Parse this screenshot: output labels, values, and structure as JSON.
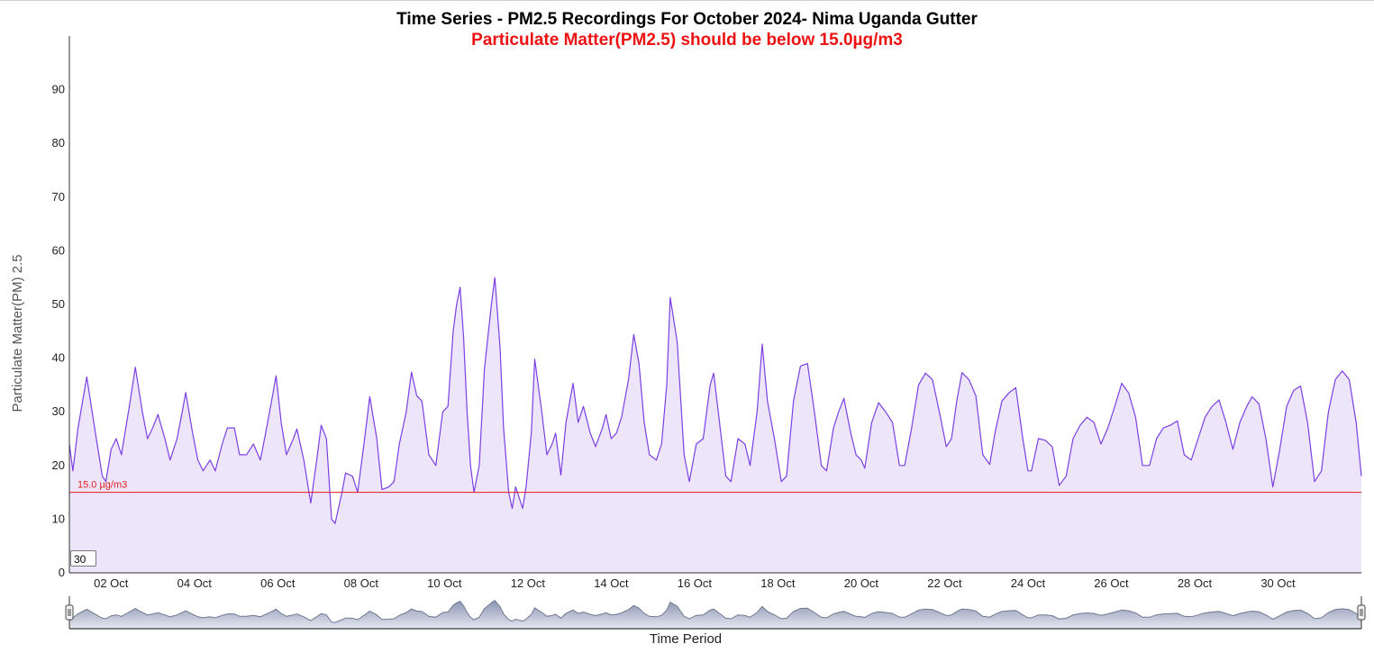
{
  "chart_data": {
    "type": "area",
    "title": "Time Series - PM2.5 Recordings For October 2024- Nima Uganda Gutter",
    "subtitle": "Particulate Matter(PM2.5) should be below 15.0µg/m3",
    "ylabel": "Particulate Matter(PM) 2.5",
    "xlabel": "Time Period",
    "ylim": [
      0,
      100
    ],
    "xlim": [
      "2024-10-01",
      "2024-11-01"
    ],
    "y_ticks": [
      "0",
      "10",
      "20",
      "30",
      "40",
      "50",
      "60",
      "70",
      "80",
      "90"
    ],
    "x_ticks": [
      "02 Oct",
      "04 Oct",
      "06 Oct",
      "08 Oct",
      "10 Oct",
      "12 Oct",
      "14 Oct",
      "16 Oct",
      "18 Oct",
      "20 Oct",
      "22 Oct",
      "24 Oct",
      "26 Oct",
      "28 Oct",
      "30 Oct"
    ],
    "threshold": {
      "value": 15.0,
      "label": "15.0 µg/m3",
      "color": "#e41a1c"
    },
    "rolling_window": "30",
    "line_color": "#7b3fe4",
    "fill_color": "#ede6fb",
    "series": [
      {
        "points": [
          [
            "2024-10-01 00:00",
            24
          ],
          [
            "2024-10-01 02:00",
            19
          ],
          [
            "2024-10-01 05:00",
            27
          ],
          [
            "2024-10-01 10:00",
            36.5
          ],
          [
            "2024-10-01 15:00",
            26
          ],
          [
            "2024-10-01 19:00",
            18
          ],
          [
            "2024-10-01 21:00",
            17
          ],
          [
            "2024-10-02 00:00",
            23
          ],
          [
            "2024-10-02 03:00",
            25
          ],
          [
            "2024-10-02 06:00",
            22
          ],
          [
            "2024-10-02 11:00",
            32
          ],
          [
            "2024-10-02 14:00",
            38.3
          ],
          [
            "2024-10-02 18:00",
            30
          ],
          [
            "2024-10-02 21:00",
            25
          ],
          [
            "2024-10-03 00:00",
            27
          ],
          [
            "2024-10-03 03:00",
            29.5
          ],
          [
            "2024-10-03 07:00",
            25
          ],
          [
            "2024-10-03 10:00",
            21
          ],
          [
            "2024-10-03 14:00",
            25
          ],
          [
            "2024-10-03 17:00",
            30
          ],
          [
            "2024-10-03 19:00",
            33.6
          ],
          [
            "2024-10-03 23:00",
            26
          ],
          [
            "2024-10-04 02:00",
            21
          ],
          [
            "2024-10-04 05:00",
            19
          ],
          [
            "2024-10-04 09:00",
            21
          ],
          [
            "2024-10-04 12:00",
            19
          ],
          [
            "2024-10-04 16:00",
            24
          ],
          [
            "2024-10-04 19:00",
            27
          ],
          [
            "2024-10-04 23:00",
            27
          ],
          [
            "2024-10-05 02:00",
            22
          ],
          [
            "2024-10-05 06:00",
            22
          ],
          [
            "2024-10-05 10:00",
            24
          ],
          [
            "2024-10-05 14:00",
            21
          ],
          [
            "2024-10-05 17:00",
            26
          ],
          [
            "2024-10-05 21:00",
            33
          ],
          [
            "2024-10-05 23:00",
            36.7
          ],
          [
            "2024-10-06 02:00",
            28
          ],
          [
            "2024-10-06 05:00",
            22
          ],
          [
            "2024-10-06 09:00",
            25
          ],
          [
            "2024-10-06 11:00",
            26.8
          ],
          [
            "2024-10-06 15:00",
            21
          ],
          [
            "2024-10-06 19:00",
            13
          ],
          [
            "2024-10-06 22:00",
            20
          ],
          [
            "2024-10-07 01:00",
            27.5
          ],
          [
            "2024-10-07 04:00",
            25
          ],
          [
            "2024-10-07 07:00",
            10
          ],
          [
            "2024-10-07 09:00",
            9.2
          ],
          [
            "2024-10-07 13:00",
            15
          ],
          [
            "2024-10-07 15:00",
            18.6
          ],
          [
            "2024-10-07 19:00",
            18
          ],
          [
            "2024-10-07 22:00",
            15
          ],
          [
            "2024-10-08 02:00",
            25
          ],
          [
            "2024-10-08 05:00",
            32.8
          ],
          [
            "2024-10-08 09:00",
            25
          ],
          [
            "2024-10-08 12:00",
            15.5
          ],
          [
            "2024-10-08 16:00",
            16
          ],
          [
            "2024-10-08 19:00",
            17
          ],
          [
            "2024-10-08 22:00",
            24
          ],
          [
            "2024-10-09 02:00",
            30
          ],
          [
            "2024-10-09 05:00",
            37.4
          ],
          [
            "2024-10-09 08:00",
            33
          ],
          [
            "2024-10-09 11:00",
            32
          ],
          [
            "2024-10-09 15:00",
            22
          ],
          [
            "2024-10-09 19:00",
            20
          ],
          [
            "2024-10-09 23:00",
            30
          ],
          [
            "2024-10-10 02:00",
            31
          ],
          [
            "2024-10-10 05:00",
            45
          ],
          [
            "2024-10-10 07:00",
            50
          ],
          [
            "2024-10-10 09:00",
            53.2
          ],
          [
            "2024-10-10 11:00",
            44
          ],
          [
            "2024-10-10 13:00",
            30
          ],
          [
            "2024-10-10 15:00",
            20
          ],
          [
            "2024-10-10 17:00",
            15
          ],
          [
            "2024-10-10 20:00",
            20
          ],
          [
            "2024-10-10 23:00",
            38
          ],
          [
            "2024-10-11 03:00",
            50
          ],
          [
            "2024-10-11 05:00",
            55
          ],
          [
            "2024-10-11 08:00",
            42
          ],
          [
            "2024-10-11 10:00",
            27
          ],
          [
            "2024-10-11 13:00",
            15
          ],
          [
            "2024-10-11 15:00",
            12
          ],
          [
            "2024-10-11 17:00",
            16
          ],
          [
            "2024-10-11 19:00",
            14
          ],
          [
            "2024-10-11 21:00",
            12
          ],
          [
            "2024-10-11 23:00",
            16
          ],
          [
            "2024-10-12 02:00",
            26
          ],
          [
            "2024-10-12 04:00",
            39.8
          ],
          [
            "2024-10-12 08:00",
            30
          ],
          [
            "2024-10-12 11:00",
            22
          ],
          [
            "2024-10-12 14:00",
            24
          ],
          [
            "2024-10-12 16:00",
            26
          ],
          [
            "2024-10-12 19:00",
            18.2
          ],
          [
            "2024-10-12 22:00",
            28
          ],
          [
            "2024-10-13 02:00",
            35.3
          ],
          [
            "2024-10-13 05:00",
            28
          ],
          [
            "2024-10-13 08:00",
            31
          ],
          [
            "2024-10-13 12:00",
            26
          ],
          [
            "2024-10-13 15:00",
            23.5
          ],
          [
            "2024-10-13 19:00",
            27
          ],
          [
            "2024-10-13 21:00",
            29.5
          ],
          [
            "2024-10-14 00:00",
            25
          ],
          [
            "2024-10-14 03:00",
            26
          ],
          [
            "2024-10-14 06:00",
            29
          ],
          [
            "2024-10-14 10:00",
            36
          ],
          [
            "2024-10-14 13:00",
            44.4
          ],
          [
            "2024-10-14 16:00",
            39
          ],
          [
            "2024-10-14 19:00",
            28
          ],
          [
            "2024-10-14 22:00",
            22
          ],
          [
            "2024-10-15 02:00",
            21
          ],
          [
            "2024-10-15 05:00",
            24
          ],
          [
            "2024-10-15 08:00",
            35
          ],
          [
            "2024-10-15 10:00",
            51.3
          ],
          [
            "2024-10-15 14:00",
            43
          ],
          [
            "2024-10-15 18:00",
            22
          ],
          [
            "2024-10-15 21:00",
            17
          ],
          [
            "2024-10-16 01:00",
            24
          ],
          [
            "2024-10-16 05:00",
            25
          ],
          [
            "2024-10-16 09:00",
            35
          ],
          [
            "2024-10-16 11:00",
            37.2
          ],
          [
            "2024-10-16 14:00",
            29
          ],
          [
            "2024-10-16 18:00",
            18
          ],
          [
            "2024-10-16 21:00",
            17
          ],
          [
            "2024-10-17 01:00",
            25
          ],
          [
            "2024-10-17 05:00",
            24
          ],
          [
            "2024-10-17 08:00",
            20
          ],
          [
            "2024-10-17 12:00",
            30
          ],
          [
            "2024-10-17 15:00",
            42.6
          ],
          [
            "2024-10-17 18:00",
            32
          ],
          [
            "2024-10-17 22:00",
            25
          ],
          [
            "2024-10-18 02:00",
            17
          ],
          [
            "2024-10-18 05:00",
            18
          ],
          [
            "2024-10-18 09:00",
            32
          ],
          [
            "2024-10-18 13:00",
            38.5
          ],
          [
            "2024-10-18 17:00",
            39
          ],
          [
            "2024-10-18 21:00",
            30
          ],
          [
            "2024-10-19 01:00",
            20
          ],
          [
            "2024-10-19 04:00",
            19
          ],
          [
            "2024-10-19 08:00",
            27
          ],
          [
            "2024-10-19 11:00",
            30
          ],
          [
            "2024-10-19 14:00",
            32.5
          ],
          [
            "2024-10-19 18:00",
            26
          ],
          [
            "2024-10-19 21:00",
            22
          ],
          [
            "2024-10-20 00:00",
            21
          ],
          [
            "2024-10-20 02:00",
            19.5
          ],
          [
            "2024-10-20 06:00",
            28
          ],
          [
            "2024-10-20 10:00",
            31.7
          ],
          [
            "2024-10-20 14:00",
            30
          ],
          [
            "2024-10-20 18:00",
            28
          ],
          [
            "2024-10-20 22:00",
            20
          ],
          [
            "2024-10-21 01:00",
            20
          ],
          [
            "2024-10-21 05:00",
            27
          ],
          [
            "2024-10-21 09:00",
            35
          ],
          [
            "2024-10-21 13:00",
            37.2
          ],
          [
            "2024-10-21 17:00",
            36
          ],
          [
            "2024-10-21 21:00",
            30
          ],
          [
            "2024-10-22 01:00",
            23.5
          ],
          [
            "2024-10-22 04:00",
            25
          ],
          [
            "2024-10-22 07:00",
            32
          ],
          [
            "2024-10-22 10:00",
            37.3
          ],
          [
            "2024-10-22 14:00",
            36
          ],
          [
            "2024-10-22 18:00",
            33
          ],
          [
            "2024-10-22 22:00",
            22
          ],
          [
            "2024-10-23 02:00",
            20.2
          ],
          [
            "2024-10-23 05:00",
            26
          ],
          [
            "2024-10-23 09:00",
            32
          ],
          [
            "2024-10-23 13:00",
            33.5
          ],
          [
            "2024-10-23 17:00",
            34.5
          ],
          [
            "2024-10-23 21:00",
            25
          ],
          [
            "2024-10-24 00:00",
            19
          ],
          [
            "2024-10-24 02:00",
            19
          ],
          [
            "2024-10-24 06:00",
            25
          ],
          [
            "2024-10-24 10:00",
            24.7
          ],
          [
            "2024-10-24 14:00",
            23.5
          ],
          [
            "2024-10-24 18:00",
            16.3
          ],
          [
            "2024-10-24 22:00",
            18
          ],
          [
            "2024-10-25 02:00",
            25
          ],
          [
            "2024-10-25 06:00",
            27.5
          ],
          [
            "2024-10-25 10:00",
            29
          ],
          [
            "2024-10-25 14:00",
            28
          ],
          [
            "2024-10-25 18:00",
            24
          ],
          [
            "2024-10-25 22:00",
            27
          ],
          [
            "2024-10-26 02:00",
            31
          ],
          [
            "2024-10-26 06:00",
            35.3
          ],
          [
            "2024-10-26 10:00",
            33.5
          ],
          [
            "2024-10-26 14:00",
            29
          ],
          [
            "2024-10-26 18:00",
            20
          ],
          [
            "2024-10-26 22:00",
            20
          ],
          [
            "2024-10-27 02:00",
            25
          ],
          [
            "2024-10-27 06:00",
            27
          ],
          [
            "2024-10-27 10:00",
            27.5
          ],
          [
            "2024-10-27 14:00",
            28.3
          ],
          [
            "2024-10-27 18:00",
            22
          ],
          [
            "2024-10-27 22:00",
            21
          ],
          [
            "2024-10-28 02:00",
            25
          ],
          [
            "2024-10-28 06:00",
            29
          ],
          [
            "2024-10-28 10:00",
            31
          ],
          [
            "2024-10-28 14:00",
            32.2
          ],
          [
            "2024-10-28 18:00",
            28
          ],
          [
            "2024-10-28 22:00",
            23
          ],
          [
            "2024-10-29 02:00",
            28
          ],
          [
            "2024-10-29 06:00",
            31
          ],
          [
            "2024-10-29 09:00",
            32.8
          ],
          [
            "2024-10-29 13:00",
            31.5
          ],
          [
            "2024-10-29 17:00",
            25
          ],
          [
            "2024-10-29 21:00",
            16
          ],
          [
            "2024-10-30 01:00",
            23
          ],
          [
            "2024-10-30 05:00",
            31
          ],
          [
            "2024-10-30 09:00",
            34
          ],
          [
            "2024-10-30 13:00",
            34.8
          ],
          [
            "2024-10-30 17:00",
            28
          ],
          [
            "2024-10-30 21:00",
            17
          ],
          [
            "2024-10-31 01:00",
            19
          ],
          [
            "2024-10-31 05:00",
            30
          ],
          [
            "2024-10-31 09:00",
            36
          ],
          [
            "2024-10-31 13:00",
            37.6
          ],
          [
            "2024-10-31 17:00",
            36
          ],
          [
            "2024-10-31 21:00",
            28
          ],
          [
            "2024-11-01 00:00",
            18
          ]
        ]
      }
    ]
  }
}
